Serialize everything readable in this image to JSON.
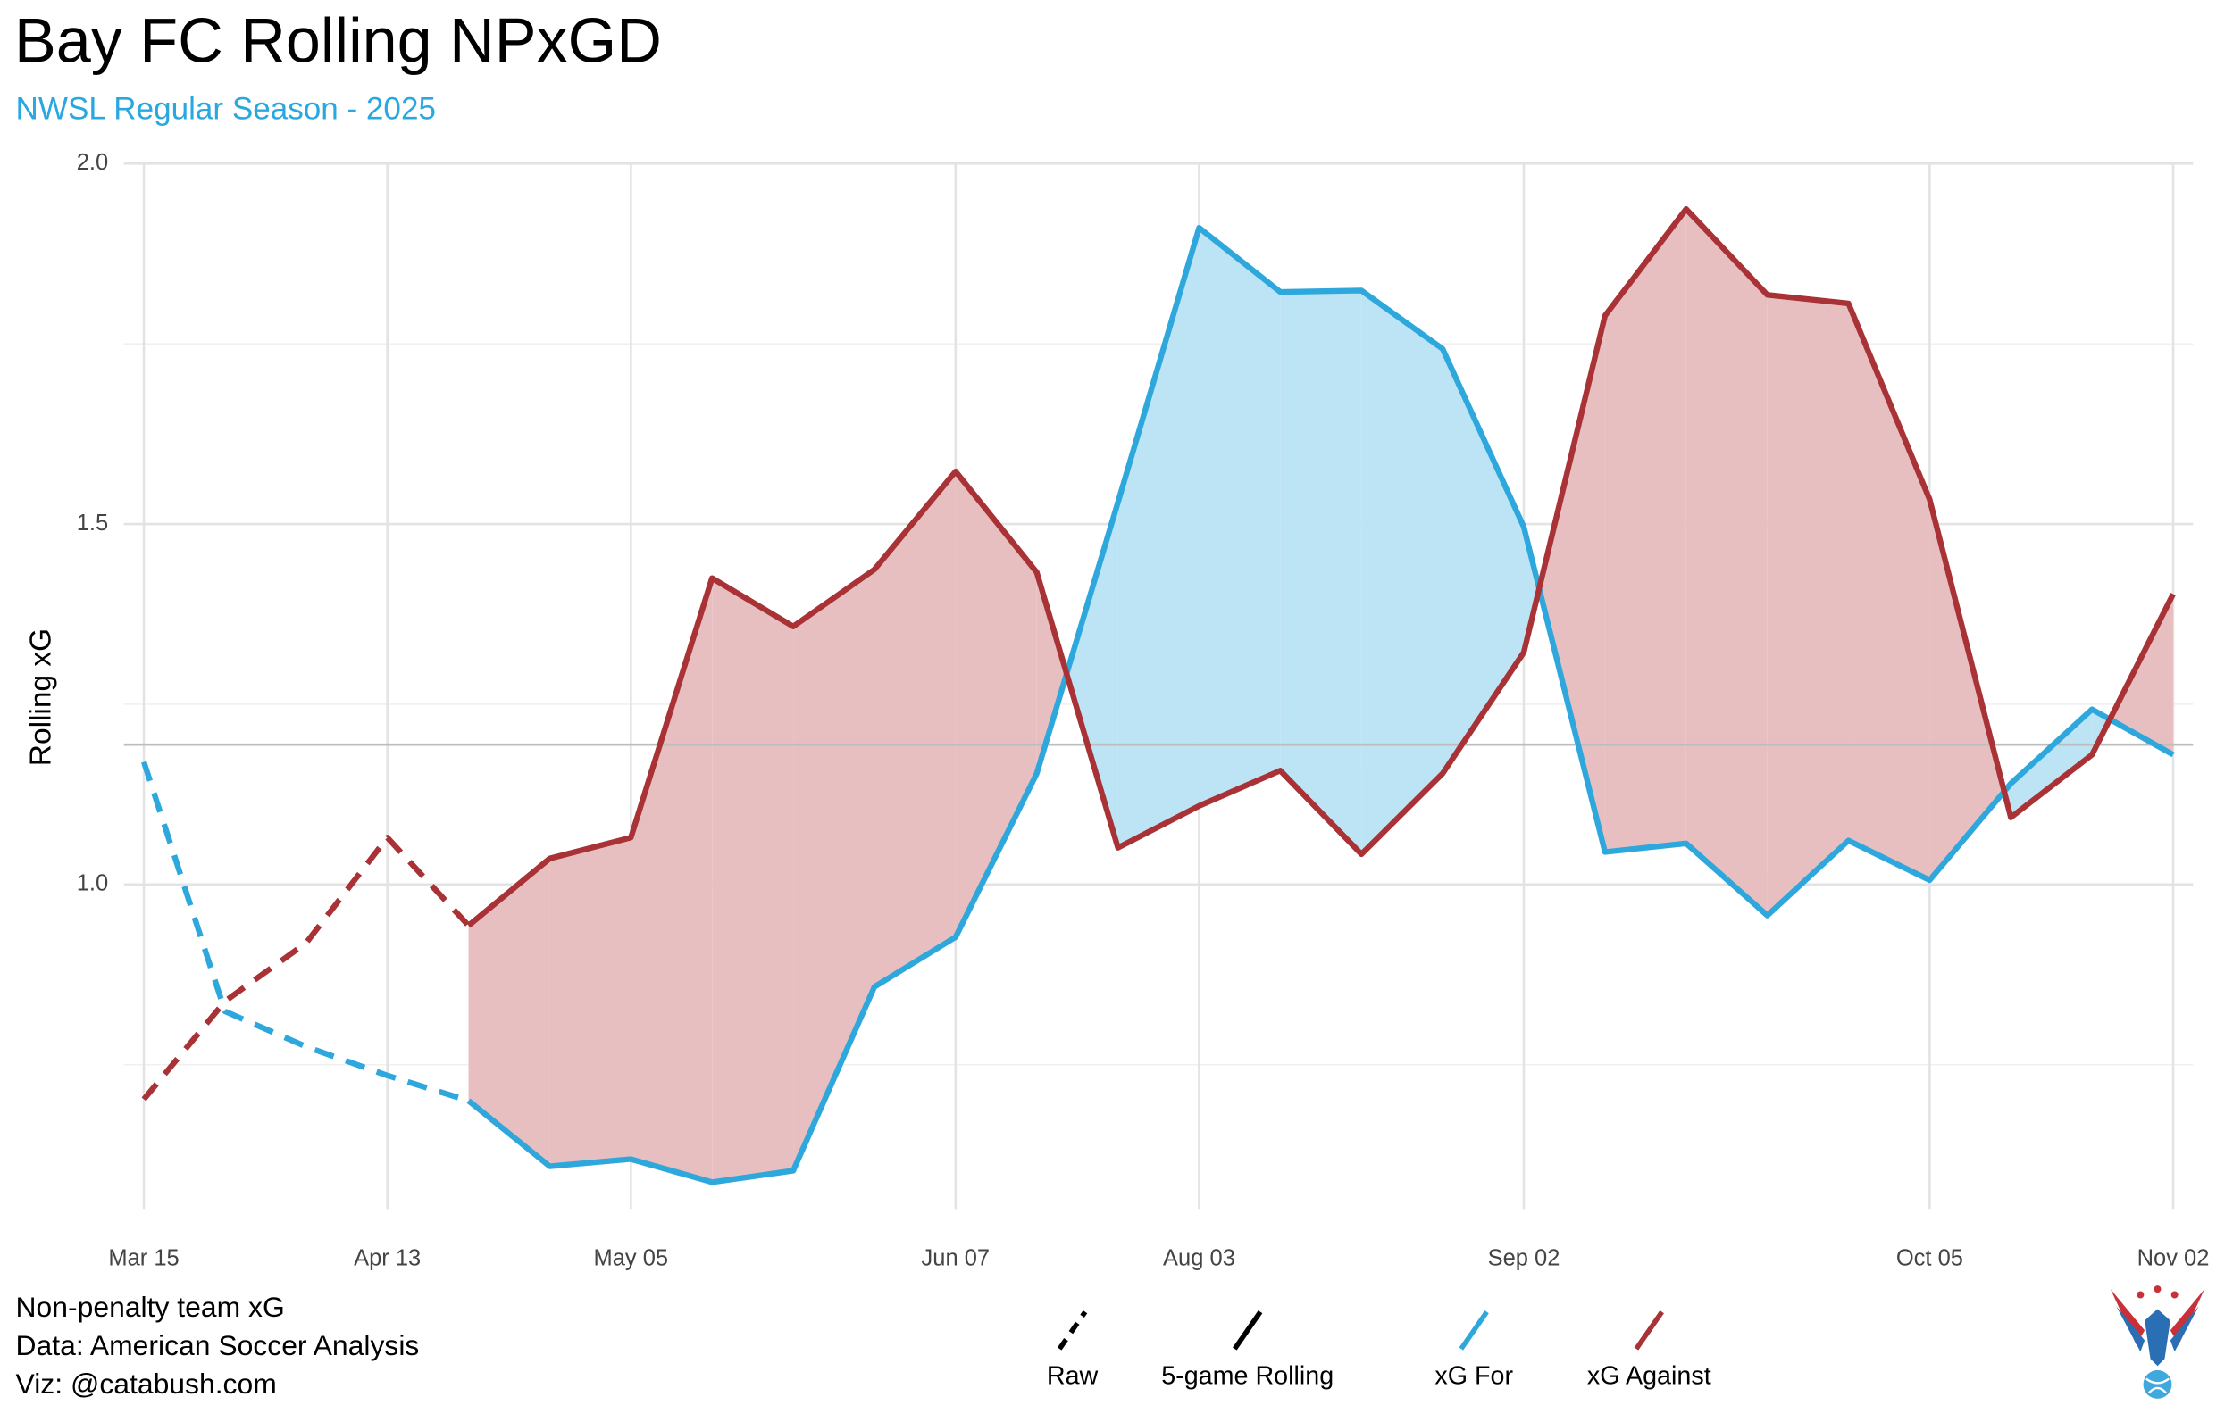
{
  "chart_data": {
    "type": "line",
    "title": "Bay FC Rolling NPxGD",
    "subtitle": "NWSL Regular Season - 2025",
    "y_label": "Rolling xG",
    "caption": [
      "Non-penalty team xG",
      "Data: American Soccer Analysis",
      "Viz: @catabush.com"
    ],
    "categories": [
      "Mar 15",
      null,
      null,
      "Apr 13",
      null,
      null,
      "May 05",
      null,
      null,
      null,
      "Jun 07",
      null,
      null,
      "Aug 03",
      null,
      null,
      null,
      "Sep 02",
      null,
      null,
      null,
      null,
      "Oct 05",
      null,
      null,
      "Nov 02"
    ],
    "series": [
      {
        "name": "xG For",
        "color": "#2ea8dc",
        "values": [
          1.17,
          0.824,
          0.775,
          0.735,
          0.7,
          0.609,
          0.619,
          0.587,
          0.603,
          0.858,
          0.927,
          1.154,
          1.53,
          1.911,
          1.822,
          1.824,
          1.743,
          1.496,
          1.045,
          1.057,
          0.957,
          1.061,
          1.006,
          1.14,
          1.243,
          1.18
        ]
      },
      {
        "name": "xG Against",
        "color": "#a83236",
        "values": [
          0.702,
          0.838,
          0.919,
          1.065,
          0.943,
          1.036,
          1.065,
          1.425,
          1.358,
          1.437,
          1.573,
          1.433,
          1.051,
          1.109,
          1.158,
          1.042,
          1.154,
          1.322,
          1.789,
          1.937,
          1.818,
          1.806,
          1.534,
          1.093,
          1.18,
          1.403
        ]
      }
    ],
    "linetypes": [
      {
        "name": "Raw",
        "dashed": true,
        "range": [
          0,
          4
        ]
      },
      {
        "name": "5-game Rolling",
        "dashed": false,
        "range": [
          4,
          25
        ]
      }
    ],
    "fill_colors": {
      "for": "#bde4f4",
      "against": "#e8bfc1"
    },
    "reference_line": 1.194,
    "ylim": [
      0.55,
      2.0
    ],
    "yticks": [
      {
        "value": 1.0,
        "label": "1.0"
      },
      {
        "value": 1.5,
        "label": "1.5"
      },
      {
        "value": 2.0,
        "label": "2.0"
      }
    ],
    "yminor": [
      0.75,
      1.25,
      1.75
    ],
    "grid": true,
    "legend_position": "bottom"
  }
}
